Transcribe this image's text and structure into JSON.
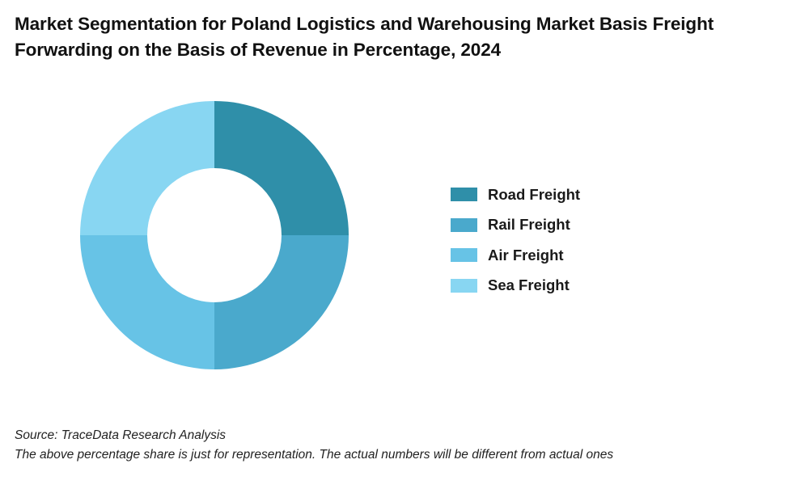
{
  "title": "Market Segmentation for Poland Logistics and Warehousing Market Basis Freight Forwarding on the Basis of Revenue in Percentage, 2024",
  "chart_data": {
    "type": "pie",
    "donut": true,
    "title": "Market Segmentation for Poland Logistics and Warehousing Market Basis Freight Forwarding on the Basis of Revenue in Percentage, 2024",
    "categories": [
      "Road Freight",
      "Rail Freight",
      "Air Freight",
      "Sea Freight"
    ],
    "values": [
      25,
      25,
      25,
      25
    ],
    "colors": [
      "#2f8fa9",
      "#4aa9cc",
      "#67c3e6",
      "#88d6f2"
    ],
    "legend_position": "right",
    "start": "12 o'clock",
    "direction": "clockwise"
  },
  "footer": {
    "source": "Source: TraceData Research Analysis",
    "note": "The above percentage share is just for representation. The actual numbers will be different from actual ones"
  }
}
